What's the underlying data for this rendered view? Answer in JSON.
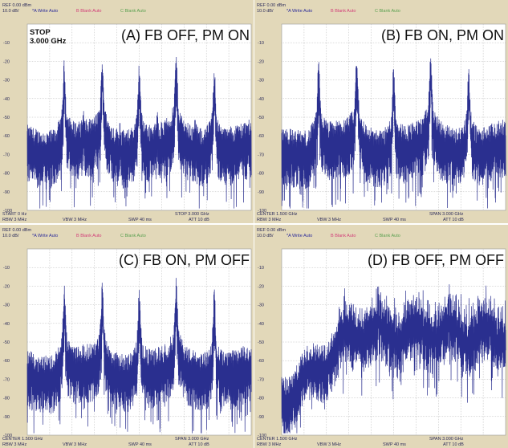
{
  "panels": [
    {
      "label": "(A) FB OFF, PM ON",
      "marker": [
        "STOP",
        "3.000 GHz"
      ],
      "ref": "REF 0.00 dBm",
      "scale": "10.0 dB/",
      "traces": [
        "*A Write Auto",
        "B Blank Auto",
        "C Blank Auto"
      ],
      "y_labels": [
        "-10",
        "-20",
        "-30",
        "-40",
        "-50",
        "-60",
        "-70",
        "-80",
        "-90",
        "-100"
      ],
      "footer": {
        "left": "START 0 Hz",
        "right": "STOP 3.000 GHz",
        "rbw": "RBW 3 MHz",
        "vbw": "VBW 3 MHz",
        "swp": "SWP 40 ms",
        "att": "ATT 10 dB"
      }
    },
    {
      "label": "(B) FB ON, PM ON",
      "ref": "REF 0.00 dBm",
      "scale": "10.0 dB/",
      "traces": [
        "*A Write Auto",
        "B Blank Auto",
        "C Blank Auto"
      ],
      "y_labels": [
        "-10",
        "-20",
        "-30",
        "-40",
        "-50",
        "-60",
        "-70",
        "-80",
        "-90",
        "-100"
      ],
      "footer": {
        "left": "CENTER 1.500 GHz",
        "right": "SPAN 3.000 GHz",
        "rbw": "RBW 3 MHz",
        "vbw": "VBW 3 MHz",
        "swp": "SWP 40 ms",
        "att": "ATT 10 dB"
      }
    },
    {
      "label": "(C) FB ON, PM OFF",
      "ref": "REF 0.00 dBm",
      "scale": "10.0 dB/",
      "traces": [
        "*A Write Auto",
        "B Blank Auto",
        "C Blank Auto"
      ],
      "y_labels": [
        "-10",
        "-20",
        "-30",
        "-40",
        "-50",
        "-60",
        "-70",
        "-80",
        "-90",
        "-100"
      ],
      "footer": {
        "left": "CENTER 1.500 GHz",
        "right": "SPAN 3.000 GHz",
        "rbw": "RBW 3 MHz",
        "vbw": "VBW 3 MHz",
        "swp": "SWP 40 ms",
        "att": "ATT 10 dB"
      }
    },
    {
      "label": "(D) FB OFF, PM OFF",
      "ref": "REF 0.00 dBm",
      "scale": "10.0 dB/",
      "traces": [
        "*A Write Auto",
        "B Blank Auto",
        "C Blank Auto"
      ],
      "y_labels": [
        "-10",
        "-20",
        "-30",
        "-40",
        "-50",
        "-60",
        "-70",
        "-80",
        "-90",
        "-100"
      ],
      "footer": {
        "left": "CENTER 1.500 GHz",
        "right": "SPAN 3.000 GHz",
        "rbw": "RBW 3 MHz",
        "vbw": "VBW 3 MHz",
        "swp": "SWP 40 ms",
        "att": "ATT 10 dB"
      }
    }
  ]
}
